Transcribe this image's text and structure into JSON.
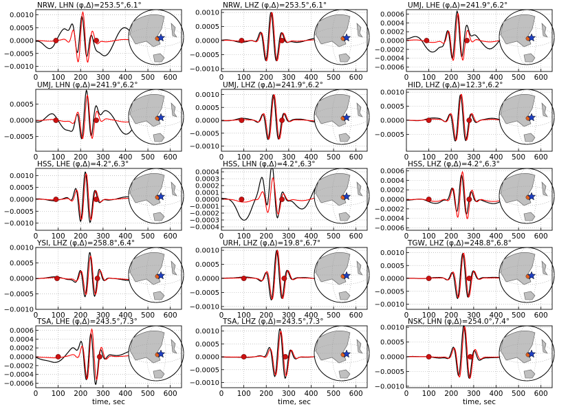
{
  "figure": {
    "xlabel": "time, sec"
  },
  "colors": {
    "data": "#000000",
    "synthetic": "#ff0000",
    "marker": "#cc1111",
    "land": "#c0c0c0",
    "ocean": "#ffffff",
    "star": "#1f3fbf",
    "event_marker": "#e06020"
  },
  "chart_data": [
    {
      "type": "line",
      "title": "NRW, LHN (φ,Δ)=253.5°,6.1°",
      "xlim": [
        0,
        650
      ],
      "ylim": [
        -0.0012,
        0.0012
      ],
      "xticks": [
        0,
        100,
        200,
        300,
        400,
        500,
        600
      ],
      "yticks": [
        -0.001,
        -0.0005,
        0.0,
        0.0005,
        0.001
      ],
      "ytick_labels": [
        "−0.0010",
        "−0.0005",
        "0.0000",
        "0.0005",
        "0.0010"
      ],
      "window_markers": [
        90,
        270
      ],
      "series": [
        {
          "t0": 210,
          "obs_amp": 0.00085,
          "syn_amp": 0.0011,
          "period": 45,
          "obs_noise": 0.0006,
          "syn_noise": 5e-05,
          "seed": 1
        }
      ]
    },
    {
      "type": "line",
      "title": "NRW, LHZ (φ,Δ)=253.5°,6.1°",
      "xlim": [
        0,
        650
      ],
      "ylim": [
        -0.0011,
        0.0011
      ],
      "xticks": [
        0,
        100,
        200,
        300,
        400,
        500,
        600
      ],
      "yticks": [
        -0.001,
        -0.0005,
        0.0,
        0.0005,
        0.001
      ],
      "ytick_labels": [
        "−0.0010",
        "−0.0005",
        "0.0000",
        "0.0005",
        "0.0010"
      ],
      "window_markers": [
        90,
        270
      ],
      "series": [
        {
          "t0": 225,
          "obs_amp": 0.001,
          "syn_amp": 0.001,
          "period": 50,
          "obs_noise": 8e-05,
          "syn_noise": 3e-05,
          "seed": 2
        }
      ]
    },
    {
      "type": "line",
      "title": "UMJ, LHE (φ,Δ)=241.9°,6.2°",
      "xlim": [
        0,
        650
      ],
      "ylim": [
        -0.0007,
        0.0007
      ],
      "xticks": [
        0,
        100,
        200,
        300,
        400,
        500,
        600
      ],
      "yticks": [
        -0.0006,
        -0.0004,
        -0.0002,
        0.0,
        0.0002,
        0.0004,
        0.0006
      ],
      "ytick_labels": [
        "−0.0006",
        "−0.0004",
        "−0.0002",
        "0.0000",
        "0.0002",
        "0.0004",
        "0.0006"
      ],
      "window_markers": [
        90,
        270
      ],
      "series": [
        {
          "t0": 230,
          "obs_amp": 0.0006,
          "syn_amp": 0.0006,
          "period": 45,
          "obs_noise": 0.00025,
          "syn_noise": 4e-05,
          "seed": 3
        }
      ]
    },
    {
      "type": "line",
      "title": "UMJ, LHN (φ,Δ)=241.9°,6.2°",
      "xlim": [
        0,
        650
      ],
      "ylim": [
        -0.00095,
        0.00095
      ],
      "xticks": [
        0,
        100,
        200,
        300,
        400,
        500,
        600
      ],
      "yticks": [
        -0.0005,
        0.0,
        0.0005
      ],
      "ytick_labels": [
        "−0.0005",
        "0.0000",
        "0.0005"
      ],
      "window_markers": [
        90,
        270
      ],
      "series": [
        {
          "t0": 230,
          "obs_amp": 0.0008,
          "syn_amp": 0.00075,
          "period": 45,
          "obs_noise": 0.0004,
          "syn_noise": 5e-05,
          "seed": 4
        }
      ]
    },
    {
      "type": "line",
      "title": "UMJ, LHZ (φ,Δ)=241.9°,6.2°",
      "xlim": [
        0,
        650
      ],
      "ylim": [
        -0.0012,
        0.0012
      ],
      "xticks": [
        0,
        100,
        200,
        300,
        400,
        500,
        600
      ],
      "yticks": [
        -0.001,
        -0.0005,
        0.0,
        0.0005,
        0.001
      ],
      "ytick_labels": [
        "−0.0010",
        "−0.0005",
        "0.0000",
        "0.0005",
        "0.0010"
      ],
      "window_markers": [
        90,
        270
      ],
      "series": [
        {
          "t0": 235,
          "obs_amp": 0.001,
          "syn_amp": 0.001,
          "period": 50,
          "obs_noise": 8e-05,
          "syn_noise": 3e-05,
          "seed": 5
        }
      ]
    },
    {
      "type": "line",
      "title": "HID, LHZ (φ,Δ)=12.3°,6.2°",
      "xlim": [
        0,
        650
      ],
      "ylim": [
        -0.0011,
        0.0011
      ],
      "xticks": [
        0,
        100,
        200,
        300,
        400,
        500,
        600
      ],
      "yticks": [
        -0.0005,
        0.0,
        0.0005,
        0.001
      ],
      "ytick_labels": [
        "−0.0005",
        "0.0000",
        "0.0005",
        "0.0010"
      ],
      "window_markers": [
        100,
        280
      ],
      "series": [
        {
          "t0": 245,
          "obs_amp": 0.00095,
          "syn_amp": 0.00095,
          "period": 50,
          "obs_noise": 8e-05,
          "syn_noise": 4e-05,
          "seed": 6
        }
      ]
    },
    {
      "type": "line",
      "title": "HSS, LHE (φ,Δ)=4.2°,6.3°",
      "xlim": [
        0,
        650
      ],
      "ylim": [
        -0.0013,
        0.0013
      ],
      "xticks": [
        0,
        100,
        200,
        300,
        400,
        500,
        600
      ],
      "yticks": [
        -0.001,
        -0.0005,
        0.0,
        0.0005,
        0.001
      ],
      "ytick_labels": [
        "−0.0010",
        "−0.0005",
        "0.0000",
        "0.0005",
        "0.0010"
      ],
      "window_markers": [
        90,
        270
      ],
      "series": [
        {
          "t0": 225,
          "obs_amp": 0.0012,
          "syn_amp": 0.0011,
          "period": 45,
          "obs_noise": 0.0001,
          "syn_noise": 4e-05,
          "seed": 7
        }
      ]
    },
    {
      "type": "line",
      "title": "HSS, LHN (φ,Δ)=4.2°,6.3°",
      "xlim": [
        0,
        650
      ],
      "ylim": [
        -0.00045,
        0.00045
      ],
      "xticks": [
        0,
        100,
        200,
        300,
        400,
        500,
        600
      ],
      "yticks": [
        -0.0004,
        -0.0003,
        -0.0002,
        -0.0001,
        0.0,
        0.0001,
        0.0002,
        0.0003,
        0.0004
      ],
      "ytick_labels": [
        "−0.0004",
        "−0.0003",
        "−0.0002",
        "−0.0001",
        "0.0000",
        "0.0001",
        "0.0002",
        "0.0003",
        "0.0004"
      ],
      "window_markers": [
        90,
        270
      ],
      "series": [
        {
          "t0": 230,
          "obs_amp": 0.0004,
          "syn_amp": 0.0003,
          "period": 50,
          "obs_noise": 0.0003,
          "syn_noise": 4e-05,
          "seed": 8
        }
      ]
    },
    {
      "type": "line",
      "title": "HSS, LHZ (φ,Δ)=4.2°,6.3°",
      "xlim": [
        0,
        650
      ],
      "ylim": [
        -0.00065,
        0.00065
      ],
      "xticks": [
        0,
        100,
        200,
        300,
        400,
        500,
        600
      ],
      "yticks": [
        -0.0006,
        -0.0004,
        -0.0002,
        0.0,
        0.0002,
        0.0004,
        0.0006
      ],
      "ytick_labels": [
        "−0.0006",
        "−0.0004",
        "−0.0002",
        "0.0000",
        "0.0002",
        "0.0004",
        "0.0006"
      ],
      "window_markers": [
        100,
        280
      ],
      "series": [
        {
          "t0": 250,
          "obs_amp": 0.00045,
          "syn_amp": 0.00055,
          "period": 45,
          "obs_noise": 0.0001,
          "syn_noise": 5e-05,
          "seed": 9
        }
      ]
    },
    {
      "type": "line",
      "title": "YSI, LHZ (φ,Δ)=258.8°,6.4°",
      "xlim": [
        0,
        650
      ],
      "ylim": [
        -0.001,
        0.001
      ],
      "xticks": [
        0,
        100,
        200,
        300,
        400,
        500,
        600
      ],
      "yticks": [
        -0.001,
        -0.0005,
        0.0,
        0.0005,
        0.001
      ],
      "ytick_labels": [
        "−0.0010",
        "−0.0005",
        "0.0000",
        "0.0005",
        "0.0010"
      ],
      "window_markers": [
        95,
        275
      ],
      "series": [
        {
          "t0": 245,
          "obs_amp": 0.0008,
          "syn_amp": 0.0007,
          "period": 45,
          "obs_noise": 8e-05,
          "syn_noise": 4e-05,
          "seed": 10
        }
      ]
    },
    {
      "type": "line",
      "title": "URH, LHZ (φ,Δ)=19.8°,6.7°",
      "xlim": [
        0,
        650
      ],
      "ylim": [
        -0.0011,
        0.0011
      ],
      "xticks": [
        0,
        100,
        200,
        300,
        400,
        500,
        600
      ],
      "yticks": [
        -0.001,
        -0.0005,
        0.0,
        0.0005,
        0.001
      ],
      "ytick_labels": [
        "−0.0010",
        "−0.0005",
        "0.0000",
        "0.0005",
        "0.0010"
      ],
      "window_markers": [
        100,
        280
      ],
      "series": [
        {
          "t0": 250,
          "obs_amp": 0.001,
          "syn_amp": 0.001,
          "period": 50,
          "obs_noise": 6e-05,
          "syn_noise": 3e-05,
          "seed": 11
        }
      ]
    },
    {
      "type": "line",
      "title": "TGW, LHZ (φ,Δ)=248.8°,6.8°",
      "xlim": [
        0,
        650
      ],
      "ylim": [
        -0.0012,
        0.0012
      ],
      "xticks": [
        0,
        100,
        200,
        300,
        400,
        500,
        600
      ],
      "yticks": [
        -0.001,
        -0.0005,
        0.0,
        0.0005,
        0.001
      ],
      "ytick_labels": [
        "−0.0010",
        "−0.0005",
        "0.0000",
        "0.0005",
        "0.0010"
      ],
      "window_markers": [
        100,
        280
      ],
      "series": [
        {
          "t0": 255,
          "obs_amp": 0.001,
          "syn_amp": 0.001,
          "period": 50,
          "obs_noise": 6e-05,
          "syn_noise": 3e-05,
          "seed": 12
        }
      ]
    },
    {
      "type": "line",
      "title": "TSA, LHE (φ,Δ)=243.5°,7.3°",
      "xlim": [
        0,
        650
      ],
      "ylim": [
        -0.0007,
        0.0007
      ],
      "xticks": [
        0,
        100,
        200,
        300,
        400,
        500,
        600
      ],
      "yticks": [
        -0.0006,
        -0.0004,
        -0.0002,
        0.0,
        0.0002,
        0.0004,
        0.0006
      ],
      "ytick_labels": [
        "−0.0006",
        "−0.0004",
        "−0.0002",
        "0.0000",
        "0.0002",
        "0.0004",
        "0.0006"
      ],
      "window_markers": [
        100,
        285
      ],
      "series": [
        {
          "t0": 250,
          "obs_amp": 0.00065,
          "syn_amp": 0.00065,
          "period": 45,
          "obs_noise": 0.00025,
          "syn_noise": 5e-05,
          "seed": 13
        }
      ]
    },
    {
      "type": "line",
      "title": "TSA, LHZ (φ,Δ)=243.5°,7.3°",
      "xlim": [
        0,
        650
      ],
      "ylim": [
        -0.0012,
        0.0012
      ],
      "xticks": [
        0,
        100,
        200,
        300,
        400,
        500,
        600
      ],
      "yticks": [
        -0.001,
        -0.0005,
        0.0,
        0.0005,
        0.001
      ],
      "ytick_labels": [
        "−0.0010",
        "−0.0005",
        "0.0000",
        "0.0005",
        "0.0010"
      ],
      "window_markers": [
        100,
        285
      ],
      "series": [
        {
          "t0": 265,
          "obs_amp": 0.0011,
          "syn_amp": 0.001,
          "period": 50,
          "obs_noise": 6e-05,
          "syn_noise": 3e-05,
          "seed": 14
        }
      ]
    },
    {
      "type": "line",
      "title": "NSK, LHN (φ,Δ)=254.0°,7.4°",
      "xlim": [
        0,
        650
      ],
      "ylim": [
        -0.00105,
        0.00105
      ],
      "xticks": [
        0,
        100,
        200,
        300,
        400,
        500,
        600
      ],
      "yticks": [
        -0.001,
        -0.0005,
        0.0,
        0.0005,
        0.001
      ],
      "ytick_labels": [
        "−0.0010",
        "−0.0005",
        "0.0000",
        "0.0005",
        "0.0010"
      ],
      "window_markers": [
        100,
        285
      ],
      "series": [
        {
          "t0": 260,
          "obs_amp": 0.001,
          "syn_amp": 0.001,
          "period": 50,
          "obs_noise": 0.0001,
          "syn_noise": 4e-05,
          "seed": 15
        }
      ]
    }
  ]
}
